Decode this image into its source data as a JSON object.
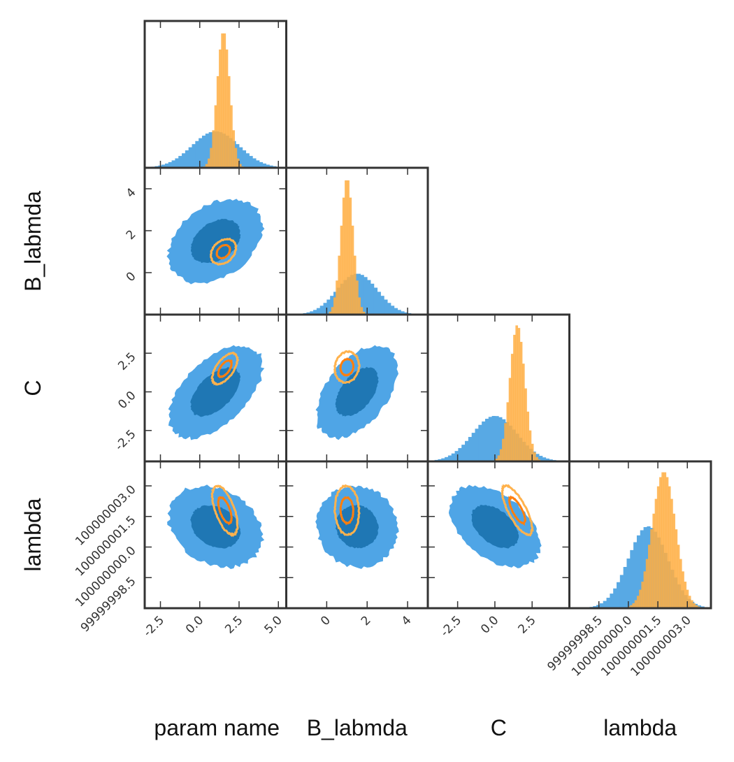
{
  "chart_data": {
    "type": "corner",
    "parameters": [
      "param name",
      "B_labmda",
      "C",
      "lambda"
    ],
    "colors": {
      "blue_hist": "#58a9e4",
      "blue_outer": "#4fa5e6",
      "blue_inner": "#1f77b4",
      "orange_hist": "#ffae42",
      "orange_outer": "#ffb24d",
      "orange_inner": "#ff7f0e"
    },
    "axes": [
      {
        "name": "param name",
        "range": [
          -3.5,
          5.5
        ],
        "ticks": [
          -2.5,
          0.0,
          2.5,
          5.0
        ],
        "tick_labels": [
          "-2.5",
          "0.0",
          "2.5",
          "5.0"
        ]
      },
      {
        "name": "B_labmda",
        "range": [
          -2.0,
          5.0
        ],
        "ticks": [
          0,
          2,
          4
        ],
        "tick_labels": [
          "0",
          "2",
          "4"
        ]
      },
      {
        "name": "C",
        "range": [
          -4.5,
          5.0
        ],
        "ticks": [
          -2.5,
          0.0,
          2.5
        ],
        "tick_labels": [
          "-2.5",
          "0.0",
          "2.5"
        ]
      },
      {
        "name": "lambda",
        "range": [
          99999997.0,
          100000004.2
        ],
        "ticks": [
          99999998.5,
          100000000.0,
          100000001.5,
          100000003.0
        ],
        "tick_labels": [
          "99999998.5",
          "100000000.0",
          "100000001.5",
          "100000003.0"
        ]
      }
    ],
    "series": [
      {
        "name": "blue",
        "mean": [
          1.0,
          1.5,
          0.0,
          100000001.0
        ],
        "std": [
          1.5,
          1.0,
          1.5,
          1.0
        ]
      },
      {
        "name": "orange",
        "mean": [
          1.5,
          1.0,
          1.5,
          100000001.8
        ],
        "std": [
          0.4,
          0.3,
          0.5,
          0.6
        ]
      }
    ],
    "xlabels": [
      "param name",
      "B_labmda",
      "C",
      "lambda"
    ],
    "ylabels": [
      "",
      "B_labmda",
      "C",
      "lambda"
    ],
    "contours": [
      {
        "row": 1,
        "col": 0,
        "blue": {
          "center": [
            1.0,
            1.5
          ],
          "sigma": [
            1.5,
            1.0
          ],
          "corr": 0.35
        },
        "orange": {
          "center": [
            1.5,
            1.0
          ],
          "sigma": [
            0.4,
            0.3
          ],
          "corr": 0.3
        }
      },
      {
        "row": 2,
        "col": 0,
        "blue": {
          "center": [
            1.0,
            0.0
          ],
          "sigma": [
            1.5,
            1.5
          ],
          "corr": 0.55
        },
        "orange": {
          "center": [
            1.6,
            1.5
          ],
          "sigma": [
            0.4,
            0.5
          ],
          "corr": 0.6
        }
      },
      {
        "row": 2,
        "col": 1,
        "blue": {
          "center": [
            1.5,
            0.0
          ],
          "sigma": [
            1.0,
            1.5
          ],
          "corr": 0.5
        },
        "orange": {
          "center": [
            1.0,
            1.6
          ],
          "sigma": [
            0.3,
            0.5
          ],
          "corr": 0.1
        }
      },
      {
        "row": 3,
        "col": 0,
        "blue": {
          "center": [
            1.0,
            100000001.0
          ],
          "sigma": [
            1.5,
            1.0
          ],
          "corr": -0.25
        },
        "orange": {
          "center": [
            1.6,
            100000001.8
          ],
          "sigma": [
            0.4,
            0.6
          ],
          "corr": -0.6
        }
      },
      {
        "row": 3,
        "col": 1,
        "blue": {
          "center": [
            1.5,
            100000001.0
          ],
          "sigma": [
            1.0,
            1.0
          ],
          "corr": -0.05
        },
        "orange": {
          "center": [
            1.0,
            100000001.8
          ],
          "sigma": [
            0.3,
            0.6
          ],
          "corr": -0.05
        }
      },
      {
        "row": 3,
        "col": 2,
        "blue": {
          "center": [
            0.0,
            100000001.0
          ],
          "sigma": [
            1.5,
            1.0
          ],
          "corr": -0.45
        },
        "orange": {
          "center": [
            1.5,
            100000001.8
          ],
          "sigma": [
            0.5,
            0.6
          ],
          "corr": -0.75
        }
      }
    ]
  }
}
